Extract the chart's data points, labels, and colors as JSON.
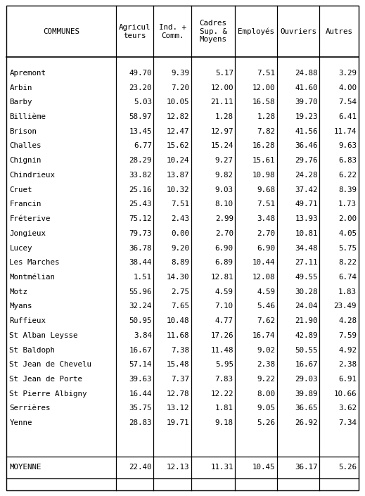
{
  "col_headers": [
    "COMMUNES",
    "Agricul\nteurs",
    "Ind. +\nComm.",
    "Cadres\nSup. &\nMoyens",
    "Employés",
    "Ouvriers",
    "Autres"
  ],
  "rows": [
    [
      "Apremont",
      "49.70",
      "9.39",
      "5.17",
      "7.51",
      "24.88",
      "3.29"
    ],
    [
      "Arbin",
      "23.20",
      "7.20",
      "12.00",
      "12.00",
      "41.60",
      "4.00"
    ],
    [
      "Barby",
      "5.03",
      "10.05",
      "21.11",
      "16.58",
      "39.70",
      "7.54"
    ],
    [
      "Billième",
      "58.97",
      "12.82",
      "1.28",
      "1.28",
      "19.23",
      "6.41"
    ],
    [
      "Brison",
      "13.45",
      "12.47",
      "12.97",
      "7.82",
      "41.56",
      "11.74"
    ],
    [
      "Challes",
      "6.77",
      "15.62",
      "15.24",
      "16.28",
      "36.46",
      "9.63"
    ],
    [
      "Chignin",
      "28.29",
      "10.24",
      "9.27",
      "15.61",
      "29.76",
      "6.83"
    ],
    [
      "Chindrieux",
      "33.82",
      "13.87",
      "9.82",
      "10.98",
      "24.28",
      "6.22"
    ],
    [
      "Cruet",
      "25.16",
      "10.32",
      "9.03",
      "9.68",
      "37.42",
      "8.39"
    ],
    [
      "Francin",
      "25.43",
      "7.51",
      "8.10",
      "7.51",
      "49.71",
      "1.73"
    ],
    [
      "Fréterive",
      "75.12",
      "2.43",
      "2.99",
      "3.48",
      "13.93",
      "2.00"
    ],
    [
      "Jongieux",
      "79.73",
      "0.00",
      "2.70",
      "2.70",
      "10.81",
      "4.05"
    ],
    [
      "Lucey",
      "36.78",
      "9.20",
      "6.90",
      "6.90",
      "34.48",
      "5.75"
    ],
    [
      "Les Marches",
      "38.44",
      "8.89",
      "6.89",
      "10.44",
      "27.11",
      "8.22"
    ],
    [
      "Montmélian",
      "1.51",
      "14.30",
      "12.81",
      "12.08",
      "49.55",
      "6.74"
    ],
    [
      "Motz",
      "55.96",
      "2.75",
      "4.59",
      "4.59",
      "30.28",
      "1.83"
    ],
    [
      "Myans",
      "32.24",
      "7.65",
      "7.10",
      "5.46",
      "24.04",
      "23.49"
    ],
    [
      "Ruffieux",
      "50.95",
      "10.48",
      "4.77",
      "7.62",
      "21.90",
      "4.28"
    ],
    [
      "St Alban Leysse",
      "3.84",
      "11.68",
      "17.26",
      "16.74",
      "42.89",
      "7.59"
    ],
    [
      "St Baldoph",
      "16.67",
      "7.38",
      "11.48",
      "9.02",
      "50.55",
      "4.92"
    ],
    [
      "St Jean de Chevelu",
      "57.14",
      "15.48",
      "5.95",
      "2.38",
      "16.67",
      "2.38"
    ],
    [
      "St Jean de Porte",
      "39.63",
      "7.37",
      "7.83",
      "9.22",
      "29.03",
      "6.91"
    ],
    [
      "St Pierre Albigny",
      "16.44",
      "12.78",
      "12.22",
      "8.00",
      "39.89",
      "10.66"
    ],
    [
      "Serrières",
      "35.75",
      "13.12",
      "1.81",
      "9.05",
      "36.65",
      "3.62"
    ],
    [
      "Yenne",
      "28.83",
      "19.71",
      "9.18",
      "5.26",
      "26.92",
      "7.34"
    ]
  ],
  "moyenne": [
    "MOYENNE",
    "22.40",
    "12.13",
    "11.31",
    "10.45",
    "36.17",
    "5.26"
  ],
  "bg_color": "#ffffff",
  "fontsize": 7.8
}
